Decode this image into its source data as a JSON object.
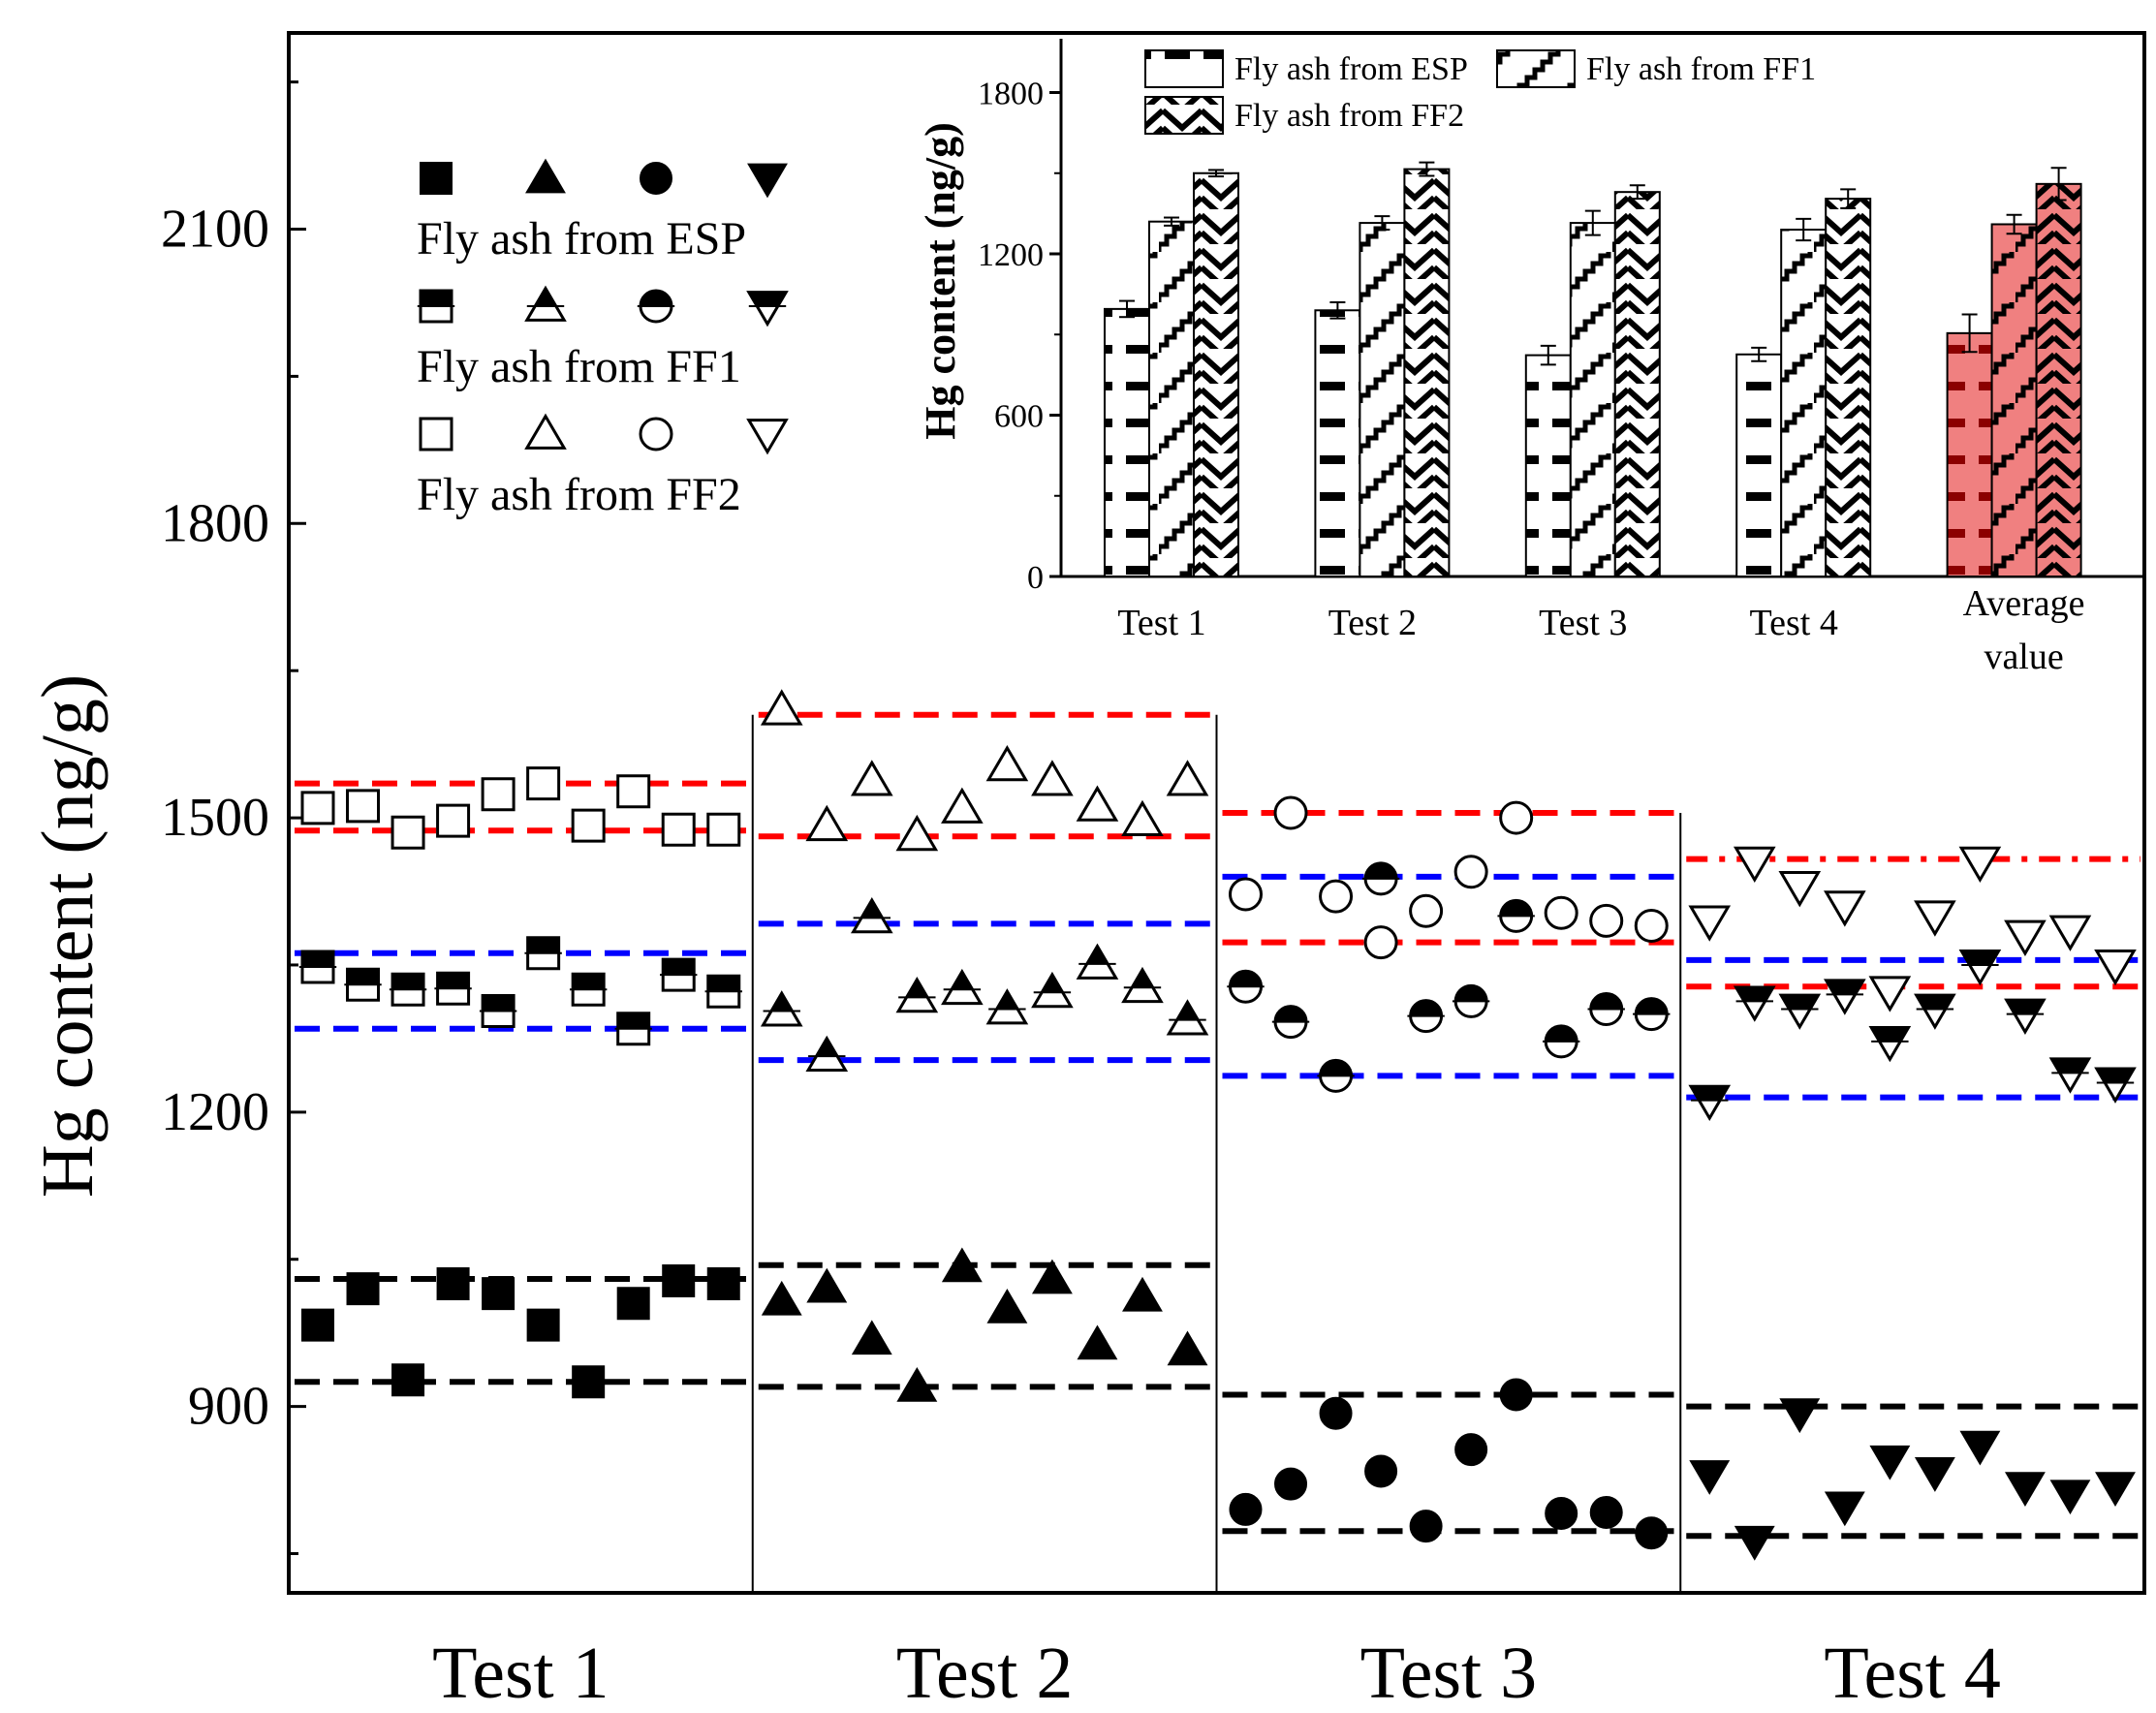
{
  "chart_data": [
    {
      "type": "scatter",
      "ylabel": "Hg content (ng/g)",
      "ylim": [
        710,
        2300
      ],
      "yticks": [
        900,
        1200,
        1500,
        1800,
        2100
      ],
      "tests": [
        "Test 1",
        "Test 2",
        "Test 3",
        "Test 4"
      ],
      "legend": {
        "position": "upper-left",
        "rows": [
          {
            "label": "Fly ash from ESP",
            "fill": "full"
          },
          {
            "label": "Fly ash from FF1",
            "fill": "half"
          },
          {
            "label": "Fly ash from FF2",
            "fill": "open"
          }
        ],
        "shapes": [
          "square",
          "triangle-up",
          "circle",
          "triangle-down"
        ]
      },
      "panels": [
        {
          "test": "Test 1",
          "marker": "square",
          "series": [
            {
              "name": "Fly ash from ESP",
              "fill": "full",
              "color": "#000000",
              "values": [
                983,
                1020,
                927,
                1025,
                1015,
                983,
                925,
                1005,
                1028,
                1025
              ],
              "bounds": [
                925,
                1030
              ]
            },
            {
              "name": "Fly ash from FF1",
              "fill": "half",
              "color": "#0000ff",
              "values": [
                1348,
                1330,
                1325,
                1326,
                1303,
                1362,
                1325,
                1285,
                1340,
                1323
              ],
              "bounds": [
                1285,
                1362
              ]
            },
            {
              "name": "Fly ash from FF2",
              "fill": "open",
              "color": "#ff0000",
              "values": [
                1510,
                1512,
                1485,
                1497,
                1524,
                1535,
                1492,
                1527,
                1488,
                1488
              ],
              "bounds": [
                1487,
                1535
              ]
            }
          ]
        },
        {
          "test": "Test 2",
          "marker": "triangle-up",
          "series": [
            {
              "name": "Fly ash from ESP",
              "fill": "full",
              "color": "#000000",
              "values": [
                1008,
                1021,
                968,
                920,
                1042,
                1000,
                1030,
                963,
                1012,
                957
              ],
              "bounds": [
                920,
                1044
              ]
            },
            {
              "name": "Fly ash from FF1",
              "fill": "half",
              "color": "#0000ff",
              "values": [
                1303,
                1257,
                1398,
                1317,
                1325,
                1305,
                1322,
                1351,
                1327,
                1294
              ],
              "bounds": [
                1253,
                1392
              ]
            },
            {
              "name": "Fly ash from FF2",
              "fill": "open",
              "color": "#ff0000",
              "values": [
                1610,
                1492,
                1538,
                1482,
                1510,
                1553,
                1538,
                1512,
                1497,
                1538
              ],
              "bounds": [
                1481,
                1605
              ]
            }
          ]
        },
        {
          "test": "Test 3",
          "marker": "circle",
          "series": [
            {
              "name": "Fly ash from ESP",
              "fill": "full",
              "color": "#000000",
              "values": [
                795,
                821,
                893,
                834,
                778,
                856,
                912,
                791,
                792,
                771
              ],
              "bounds": [
                773,
                912
              ]
            },
            {
              "name": "Fly ash from FF1",
              "fill": "half",
              "color": "#0000ff",
              "values": [
                1328,
                1292,
                1237,
                1438,
                1298,
                1313,
                1400,
                1272,
                1305,
                1300
              ],
              "bounds": [
                1237,
                1440
              ]
            },
            {
              "name": "Fly ash from FF2",
              "fill": "open",
              "color": "#ff0000",
              "values": [
                1422,
                1505,
                1420,
                1373,
                1405,
                1445,
                1500,
                1403,
                1395,
                1390
              ],
              "bounds": [
                1373,
                1505
              ]
            }
          ]
        },
        {
          "test": "Test 4",
          "marker": "triangle-down",
          "series": [
            {
              "name": "Fly ash from ESP",
              "fill": "full",
              "color": "#000000",
              "values": [
                830,
                763,
                893,
                798,
                845,
                833,
                860,
                818,
                810,
                818
              ],
              "bounds": [
                768,
                900
              ]
            },
            {
              "name": "Fly ash from FF1",
              "fill": "half",
              "color": "#0000ff",
              "values": [
                1212,
                1313,
                1305,
                1320,
                1272,
                1305,
                1350,
                1300,
                1240,
                1230
              ],
              "bounds": [
                1215,
                1355
              ]
            },
            {
              "name": "Fly ash from FF2",
              "fill": "open",
              "color": "#ff0000",
              "values": [
                1395,
                1455,
                1430,
                1410,
                1323,
                1400,
                1455,
                1380,
                1385,
                1350
              ],
              "bounds": [
                1328,
                1458
              ]
            }
          ]
        }
      ]
    },
    {
      "type": "bar",
      "ylabel": "Hg content (ng/g)",
      "ylim": [
        0,
        2000
      ],
      "yticks": [
        0,
        600,
        1200,
        1800
      ],
      "categories": [
        "Test 1",
        "Test 2",
        "Test 3",
        "Test 4",
        "Average value"
      ],
      "highlight_category": "Average value",
      "highlight_color": "#f08080",
      "series": [
        {
          "name": "Fly ash from ESP",
          "pattern": "dashes",
          "values": [
            995,
            990,
            823,
            826,
            905
          ],
          "errors": [
            30,
            30,
            35,
            25,
            70
          ]
        },
        {
          "name": "Fly ash from FF1",
          "pattern": "steps",
          "values": [
            1320,
            1315,
            1315,
            1290,
            1310
          ],
          "errors": [
            15,
            25,
            45,
            40,
            35
          ]
        },
        {
          "name": "Fly ash from FF2",
          "pattern": "zigzag",
          "values": [
            1500,
            1515,
            1430,
            1405,
            1460
          ],
          "errors": [
            12,
            25,
            25,
            35,
            60
          ]
        }
      ],
      "legend": {
        "position": "top-left",
        "entries": [
          "Fly ash from ESP",
          "Fly ash from FF1",
          "Fly ash from FF2"
        ]
      }
    }
  ]
}
